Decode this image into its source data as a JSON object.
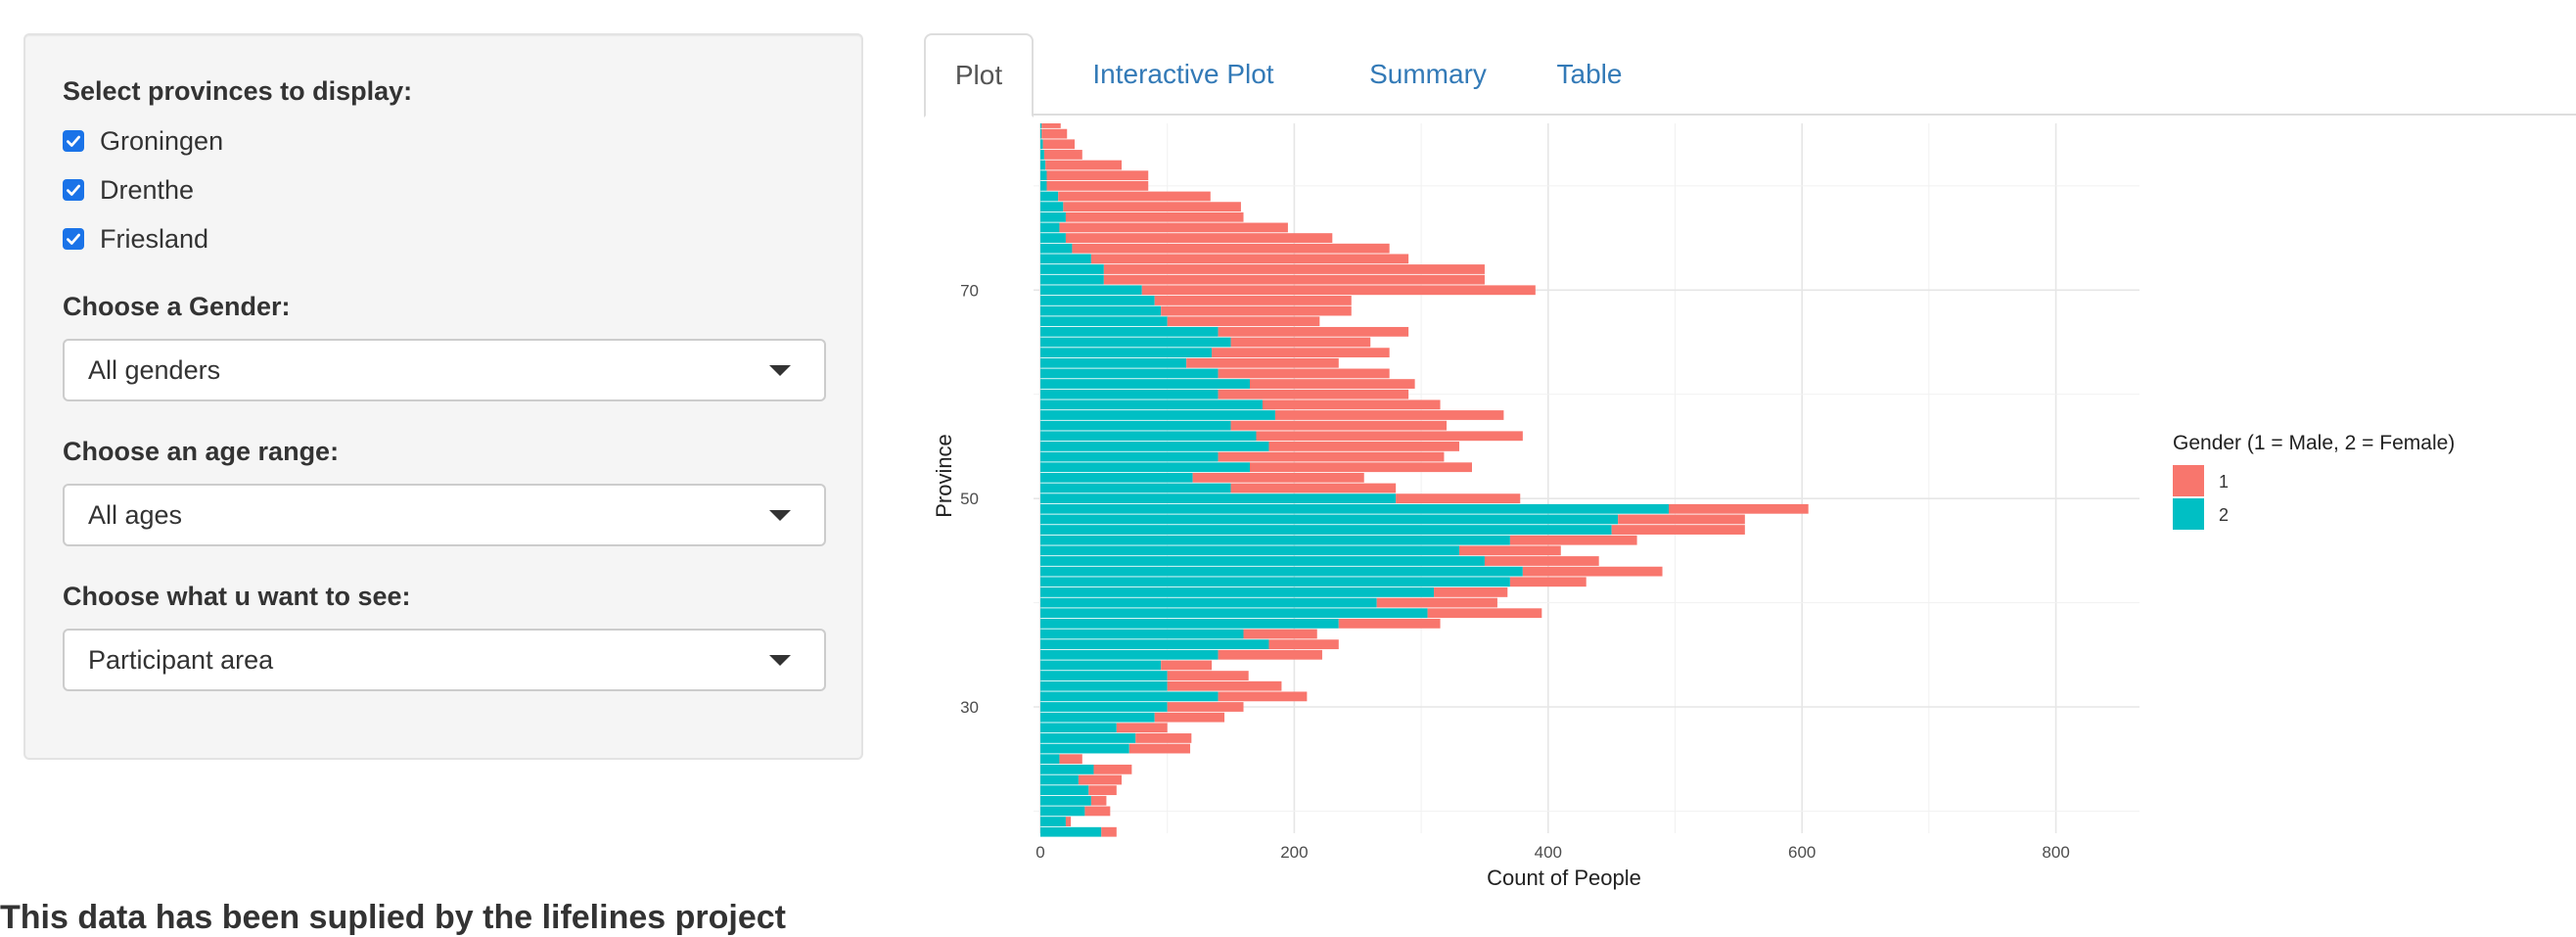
{
  "sidebar": {
    "provinces_label": "Select provinces to display:",
    "provinces": [
      {
        "label": "Groningen",
        "checked": true
      },
      {
        "label": "Drenthe",
        "checked": true
      },
      {
        "label": "Friesland",
        "checked": true
      }
    ],
    "gender_label": "Choose a Gender:",
    "gender_value": "All genders",
    "age_label": "Choose an age range:",
    "age_value": "All ages",
    "view_label": "Choose what u want to see:",
    "view_value": "Participant area"
  },
  "tabs": [
    {
      "label": "Plot",
      "active": true
    },
    {
      "label": "Interactive Plot",
      "active": false
    },
    {
      "label": "Summary",
      "active": false
    },
    {
      "label": "Table",
      "active": false
    }
  ],
  "footer": {
    "text": "This data has been suplied by the lifelines project"
  },
  "colors": {
    "series_1": "#f8766d",
    "series_2": "#00bfc4"
  },
  "chart_data": {
    "type": "bar",
    "orientation": "horizontal",
    "stacked": true,
    "xlabel": "Count of People",
    "ylabel": "Province",
    "xlim": [
      0,
      860
    ],
    "ylim": [
      16,
      86
    ],
    "x_ticks": [
      0,
      200,
      400,
      600,
      800
    ],
    "y_ticks": [
      30,
      50,
      70
    ],
    "legend_title": "Gender (1 = Male, 2 = Female)",
    "legend_position": "right",
    "grid": true,
    "series": [
      {
        "name": "1",
        "values": [
          12,
          4,
          20,
          12,
          22,
          34,
          30,
          18,
          48,
          44,
          40,
          55,
          60,
          70,
          90,
          64,
          40,
          82,
          55,
          58,
          80,
          90,
          95,
          58,
          60,
          110,
          90,
          80,
          100,
          105,
          100,
          110,
          98,
          130,
          135,
          175,
          178,
          150,
          210,
          170,
          180,
          140,
          150,
          130,
          135,
          120,
          140,
          110,
          150,
          120,
          150,
          155,
          310,
          300,
          300,
          250,
          250,
          210,
          180,
          140,
          140,
          120,
          80,
          80,
          60,
          30,
          25,
          20,
          15,
          8,
          12,
          8,
          4,
          3,
          3
        ]
      },
      {
        "name": "2",
        "values": [
          48,
          20,
          35,
          40,
          38,
          30,
          42,
          15,
          70,
          75,
          60,
          90,
          100,
          140,
          100,
          100,
          95,
          140,
          180,
          160,
          235,
          305,
          265,
          310,
          370,
          380,
          350,
          330,
          370,
          450,
          455,
          495,
          280,
          150,
          120,
          165,
          140,
          180,
          170,
          150,
          185,
          175,
          140,
          165,
          140,
          115,
          135,
          150,
          140,
          100,
          95,
          90,
          80,
          50,
          50,
          40,
          25,
          20,
          15,
          20,
          18,
          14,
          5,
          5,
          4,
          3,
          2,
          1,
          1,
          1,
          0,
          0,
          0,
          0,
          0
        ]
      }
    ]
  }
}
